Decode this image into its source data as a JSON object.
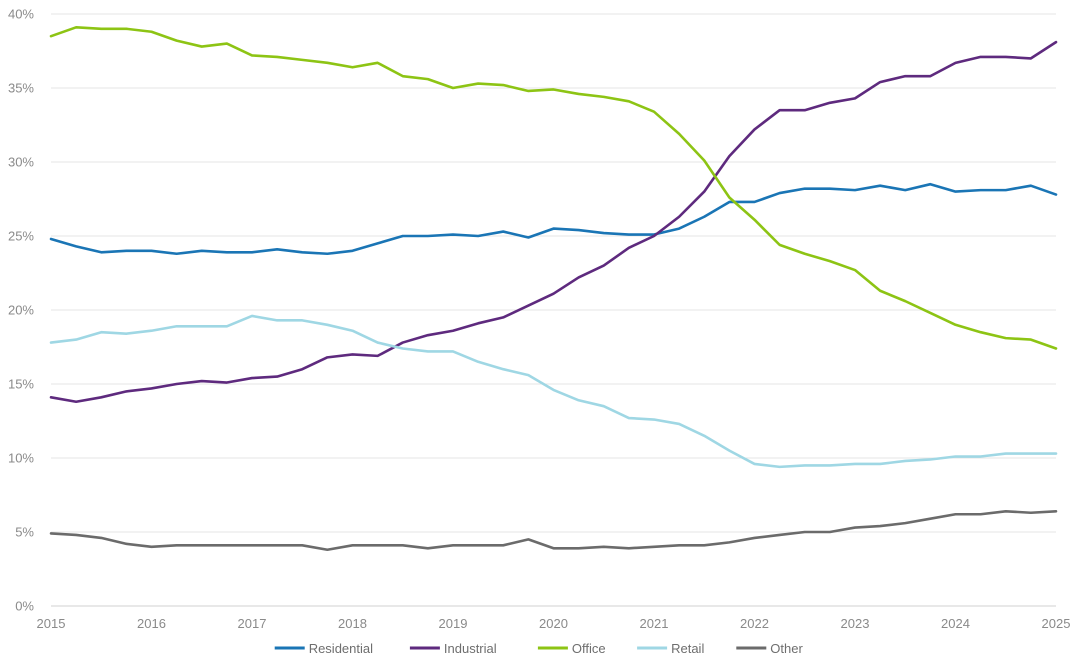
{
  "chart_data": {
    "type": "line",
    "title": "",
    "xlabel": "",
    "ylabel": "",
    "ylim": [
      0,
      40
    ],
    "xlim": [
      2015,
      2025
    ],
    "y_ticks": [
      0,
      5,
      10,
      15,
      20,
      25,
      30,
      35,
      40
    ],
    "y_tick_labels": [
      "0%",
      "5%",
      "10%",
      "15%",
      "20%",
      "25%",
      "30%",
      "35%",
      "40%"
    ],
    "x_ticks": [
      2015,
      2016,
      2017,
      2018,
      2019,
      2020,
      2021,
      2022,
      2023,
      2024,
      2025
    ],
    "x_tick_labels": [
      "2015",
      "2016",
      "2017",
      "2018",
      "2019",
      "2020",
      "2021",
      "2022",
      "2023",
      "2024",
      "2025"
    ],
    "grid": "horizontal",
    "legend_position": "bottom",
    "x": [
      2015,
      2015.25,
      2015.5,
      2015.75,
      2016,
      2016.25,
      2016.5,
      2016.75,
      2017,
      2017.25,
      2017.5,
      2017.75,
      2018,
      2018.25,
      2018.5,
      2018.75,
      2019,
      2019.25,
      2019.5,
      2019.75,
      2020,
      2020.25,
      2020.5,
      2020.75,
      2021,
      2021.25,
      2021.5,
      2021.75,
      2022,
      2022.25,
      2022.5,
      2022.75,
      2023,
      2023.25,
      2023.5,
      2023.75,
      2024,
      2024.25,
      2024.5,
      2024.75,
      2025
    ],
    "series": [
      {
        "name": "Residential",
        "color": "#1a75b5",
        "values": [
          24.8,
          24.3,
          23.9,
          24.0,
          24.0,
          23.8,
          24.0,
          23.9,
          23.9,
          24.1,
          23.9,
          23.8,
          24.0,
          24.5,
          25.0,
          25.0,
          25.1,
          25.0,
          25.3,
          24.9,
          25.5,
          25.4,
          25.2,
          25.1,
          25.1,
          25.5,
          26.3,
          27.3,
          27.3,
          27.9,
          28.2,
          28.2,
          28.1,
          28.4,
          28.1,
          28.5,
          28.0,
          28.1,
          28.1,
          28.4,
          27.8
        ]
      },
      {
        "name": "Industrial",
        "color": "#5e2a7e",
        "values": [
          14.1,
          13.8,
          14.1,
          14.5,
          14.7,
          15.0,
          15.2,
          15.1,
          15.4,
          15.5,
          16.0,
          16.8,
          17.0,
          16.9,
          17.8,
          18.3,
          18.6,
          19.1,
          19.5,
          20.3,
          21.1,
          22.2,
          23.0,
          24.2,
          25.0,
          26.3,
          28.0,
          30.4,
          32.2,
          33.5,
          33.5,
          34.0,
          34.3,
          35.4,
          35.8,
          35.8,
          36.7,
          37.1,
          37.1,
          37.0,
          38.1
        ]
      },
      {
        "name": "Office",
        "color": "#8dc414",
        "values": [
          38.5,
          39.1,
          39.0,
          39.0,
          38.8,
          38.2,
          37.8,
          38.0,
          37.2,
          37.1,
          36.9,
          36.7,
          36.4,
          36.7,
          35.8,
          35.6,
          35.0,
          35.3,
          35.2,
          34.8,
          34.9,
          34.6,
          34.4,
          34.1,
          33.4,
          31.9,
          30.1,
          27.6,
          26.1,
          24.4,
          23.8,
          23.3,
          22.7,
          21.3,
          20.6,
          19.8,
          19.0,
          18.5,
          18.1,
          18.0,
          17.4
        ]
      },
      {
        "name": "Retail",
        "color": "#9fd7e4",
        "values": [
          17.8,
          18.0,
          18.5,
          18.4,
          18.6,
          18.9,
          18.9,
          18.9,
          19.6,
          19.3,
          19.3,
          19.0,
          18.6,
          17.8,
          17.4,
          17.2,
          17.2,
          16.5,
          16.0,
          15.6,
          14.6,
          13.9,
          13.5,
          12.7,
          12.6,
          12.3,
          11.5,
          10.5,
          9.6,
          9.4,
          9.5,
          9.5,
          9.6,
          9.6,
          9.8,
          9.9,
          10.1,
          10.1,
          10.3,
          10.3,
          10.3
        ]
      },
      {
        "name": "Other",
        "color": "#6b6b6b",
        "values": [
          4.9,
          4.8,
          4.6,
          4.2,
          4.0,
          4.1,
          4.1,
          4.1,
          4.1,
          4.1,
          4.1,
          3.8,
          4.1,
          4.1,
          4.1,
          3.9,
          4.1,
          4.1,
          4.1,
          4.5,
          3.9,
          3.9,
          4.0,
          3.9,
          4.0,
          4.1,
          4.1,
          4.3,
          4.6,
          4.8,
          5.0,
          5.0,
          5.3,
          5.4,
          5.6,
          5.9,
          6.2,
          6.2,
          6.4,
          6.3,
          6.4
        ]
      }
    ]
  }
}
